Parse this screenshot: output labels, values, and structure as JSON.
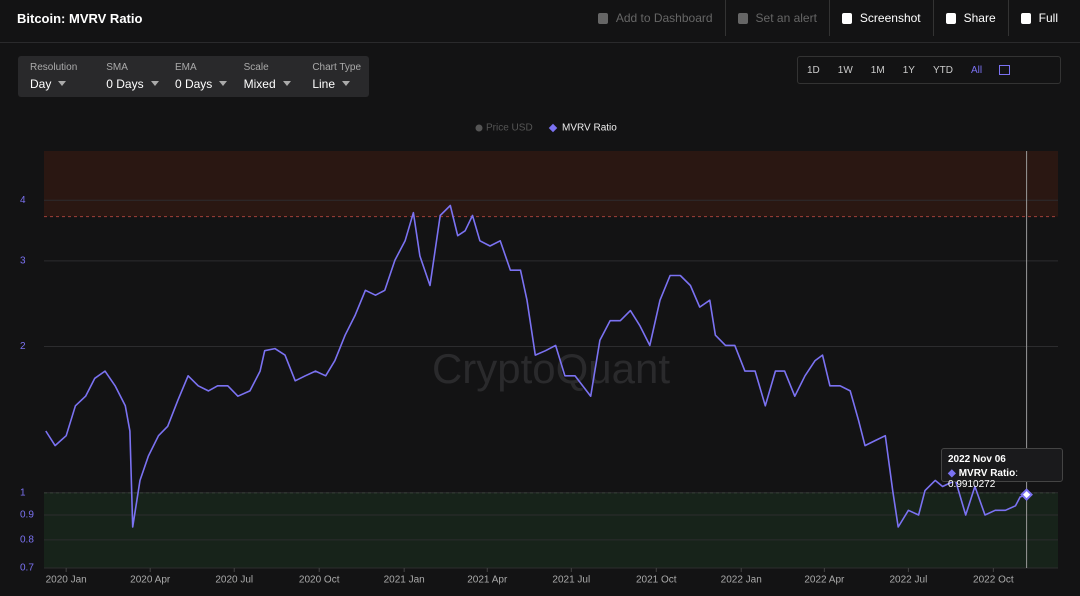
{
  "header": {
    "title": "Bitcoin: MVRV Ratio",
    "actions": [
      "Add to Dashboard",
      "Set an alert",
      "Screenshot",
      "Share",
      "Full"
    ]
  },
  "controls": [
    {
      "label": "Resolution",
      "value": "Day"
    },
    {
      "label": "SMA",
      "value": "0 Days"
    },
    {
      "label": "EMA",
      "value": "0 Days"
    },
    {
      "label": "Scale",
      "value": "Mixed"
    },
    {
      "label": "Chart Type",
      "value": "Line"
    }
  ],
  "ranges": [
    "1D",
    "1W",
    "1M",
    "1Y",
    "YTD",
    "All"
  ],
  "chart_data": {
    "type": "line",
    "log_scale": true,
    "grid": true,
    "watermark": "CryptoQuant",
    "legend_inactive": "Price USD",
    "x": [
      "2019-12-10",
      "2019-12-20",
      "2020-01-01",
      "2020-01-11",
      "2020-01-22",
      "2020-02-01",
      "2020-02-12",
      "2020-02-23",
      "2020-03-05",
      "2020-03-10",
      "2020-03-13",
      "2020-03-21",
      "2020-03-30",
      "2020-04-10",
      "2020-04-20",
      "2020-05-01",
      "2020-05-12",
      "2020-05-23",
      "2020-06-03",
      "2020-06-13",
      "2020-06-24",
      "2020-07-05",
      "2020-07-18",
      "2020-07-29",
      "2020-08-03",
      "2020-08-14",
      "2020-08-25",
      "2020-09-05",
      "2020-09-16",
      "2020-09-27",
      "2020-10-08",
      "2020-10-18",
      "2020-10-29",
      "2020-11-09",
      "2020-11-20",
      "2020-12-01",
      "2020-12-11",
      "2020-12-22",
      "2021-01-02",
      "2021-01-11",
      "2021-01-18",
      "2021-01-29",
      "2021-02-09",
      "2021-02-20",
      "2021-02-28",
      "2021-03-08",
      "2021-03-16",
      "2021-03-24",
      "2021-04-04",
      "2021-04-15",
      "2021-04-26",
      "2021-05-07",
      "2021-05-14",
      "2021-05-23",
      "2021-06-03",
      "2021-06-14",
      "2021-06-24",
      "2021-07-05",
      "2021-07-22",
      "2021-08-01",
      "2021-08-12",
      "2021-08-23",
      "2021-09-03",
      "2021-09-13",
      "2021-09-24",
      "2021-10-05",
      "2021-10-16",
      "2021-10-27",
      "2021-11-07",
      "2021-11-17",
      "2021-11-28",
      "2021-12-04",
      "2021-12-15",
      "2021-12-25",
      "2022-01-05",
      "2022-01-16",
      "2022-01-27",
      "2022-02-07",
      "2022-02-17",
      "2022-02-28",
      "2022-03-11",
      "2022-03-22",
      "2022-03-30",
      "2022-04-07",
      "2022-04-18",
      "2022-04-29",
      "2022-05-08",
      "2022-05-15",
      "2022-05-26",
      "2022-06-06",
      "2022-06-14",
      "2022-06-20",
      "2022-07-01",
      "2022-07-12",
      "2022-07-19",
      "2022-07-30",
      "2022-08-07",
      "2022-08-21",
      "2022-09-01",
      "2022-09-11",
      "2022-09-22",
      "2022-10-03",
      "2022-10-14",
      "2022-10-25",
      "2022-10-30",
      "2022-11-06"
    ],
    "series": [
      {
        "name": "MVRV Ratio",
        "color": "#7b72f2",
        "values": [
          1.34,
          1.25,
          1.31,
          1.51,
          1.58,
          1.72,
          1.78,
          1.66,
          1.51,
          1.34,
          0.85,
          1.06,
          1.19,
          1.31,
          1.37,
          1.55,
          1.74,
          1.66,
          1.62,
          1.66,
          1.66,
          1.58,
          1.62,
          1.78,
          1.96,
          1.98,
          1.92,
          1.7,
          1.74,
          1.78,
          1.74,
          1.87,
          2.11,
          2.32,
          2.61,
          2.55,
          2.61,
          3.01,
          3.3,
          3.77,
          3.07,
          2.67,
          3.72,
          3.9,
          3.38,
          3.46,
          3.72,
          3.3,
          3.22,
          3.3,
          2.87,
          2.87,
          2.49,
          1.92,
          1.96,
          2.01,
          1.74,
          1.74,
          1.58,
          2.06,
          2.26,
          2.26,
          2.37,
          2.21,
          2.01,
          2.49,
          2.8,
          2.8,
          2.67,
          2.41,
          2.49,
          2.11,
          2.01,
          2.01,
          1.78,
          1.78,
          1.51,
          1.78,
          1.78,
          1.58,
          1.74,
          1.87,
          1.92,
          1.66,
          1.66,
          1.62,
          1.41,
          1.25,
          1.28,
          1.31,
          1.01,
          0.85,
          0.92,
          0.9,
          1.01,
          1.06,
          1.03,
          1.06,
          0.9,
          1.03,
          0.9,
          0.92,
          0.92,
          0.94,
          0.98,
          0.9910272
        ]
      }
    ],
    "xlim": [
      "2019-12-08",
      "2022-12-10"
    ],
    "xticks": [
      {
        "value": "2020-01-01",
        "label": "2020 Jan"
      },
      {
        "value": "2020-04-01",
        "label": "2020 Apr"
      },
      {
        "value": "2020-07-01",
        "label": "2020 Jul"
      },
      {
        "value": "2020-10-01",
        "label": "2020 Oct"
      },
      {
        "value": "2021-01-01",
        "label": "2021 Jan"
      },
      {
        "value": "2021-04-01",
        "label": "2021 Apr"
      },
      {
        "value": "2021-07-01",
        "label": "2021 Jul"
      },
      {
        "value": "2021-10-01",
        "label": "2021 Oct"
      },
      {
        "value": "2022-01-01",
        "label": "2022 Jan"
      },
      {
        "value": "2022-04-01",
        "label": "2022 Apr"
      },
      {
        "value": "2022-07-01",
        "label": "2022 Jul"
      },
      {
        "value": "2022-10-01",
        "label": "2022 Oct"
      }
    ],
    "ylim": [
      0.7,
      5.05
    ],
    "yticks": [
      0.7,
      0.8,
      0.9,
      1,
      2,
      3,
      4
    ],
    "bands": [
      {
        "from": 3.7,
        "to": 5.05,
        "color": "#2a1712",
        "line": "#a0403a"
      },
      {
        "from": 0.7,
        "to": 1,
        "color": "#17231a",
        "line": "#5a7a52"
      }
    ],
    "tooltip": {
      "date": "2022 Nov 06",
      "value": 0.9910272
    }
  }
}
